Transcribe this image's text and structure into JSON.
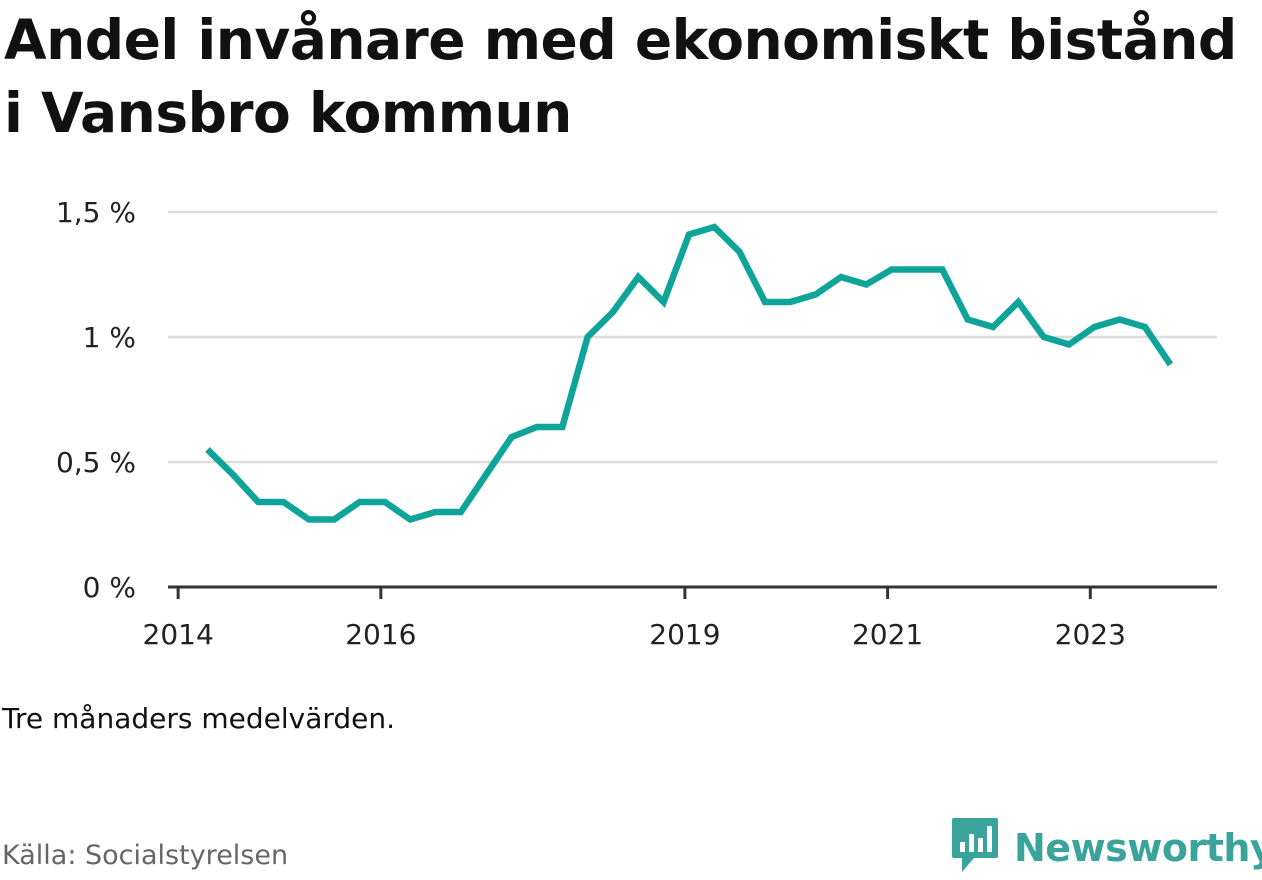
{
  "title": "Andel invånare med ekonomiskt bistånd i Vansbro kommun",
  "note": "Tre månaders medelvärden.",
  "source": "Källa: Socialstyrelsen",
  "brand": {
    "name": "Newsworthy",
    "icon": "newsworthy-logo-icon",
    "color": "#3aa39b"
  },
  "colors": {
    "line": "#0fa49a",
    "grid": "#dddddd",
    "axis": "#333333"
  },
  "chart_data": {
    "type": "line",
    "title": "Andel invånare med ekonomiskt bistånd i Vansbro kommun",
    "xlabel": "",
    "ylabel": "",
    "ylim": [
      0,
      1.5
    ],
    "xlim": [
      2013.9,
      2024.25
    ],
    "grid": true,
    "y_ticks": [
      {
        "value": 0,
        "label": "0 %"
      },
      {
        "value": 0.5,
        "label": "0,5 %"
      },
      {
        "value": 1,
        "label": "1 %"
      },
      {
        "value": 1.5,
        "label": "1,5 %"
      }
    ],
    "x_ticks": [
      {
        "value": 2014,
        "label": "2014"
      },
      {
        "value": 2016,
        "label": "2016"
      },
      {
        "value": 2019,
        "label": "2019"
      },
      {
        "value": 2021,
        "label": "2021"
      },
      {
        "value": 2023,
        "label": "2023"
      }
    ],
    "series": [
      {
        "color": "#0fa49a",
        "x": [
          2014.29,
          2014.54,
          2014.79,
          2015.04,
          2015.29,
          2015.54,
          2015.79,
          2016.04,
          2016.29,
          2016.54,
          2016.79,
          2017.04,
          2017.29,
          2017.54,
          2017.79,
          2018.04,
          2018.29,
          2018.54,
          2018.79,
          2019.04,
          2019.29,
          2019.54,
          2019.79,
          2020.04,
          2020.29,
          2020.54,
          2020.79,
          2021.04,
          2021.29,
          2021.54,
          2021.79,
          2022.04,
          2022.29,
          2022.54,
          2022.79,
          2023.04,
          2023.29,
          2023.54,
          2023.79
        ],
        "values": [
          0.55,
          0.45,
          0.34,
          0.34,
          0.27,
          0.27,
          0.34,
          0.34,
          0.27,
          0.3,
          0.3,
          0.45,
          0.6,
          0.64,
          0.64,
          1.0,
          1.1,
          1.24,
          1.14,
          1.41,
          1.44,
          1.34,
          1.14,
          1.14,
          1.17,
          1.24,
          1.21,
          1.27,
          1.27,
          1.27,
          1.07,
          1.04,
          1.14,
          1.0,
          0.97,
          1.04,
          1.07,
          1.04,
          0.89
        ]
      }
    ]
  }
}
